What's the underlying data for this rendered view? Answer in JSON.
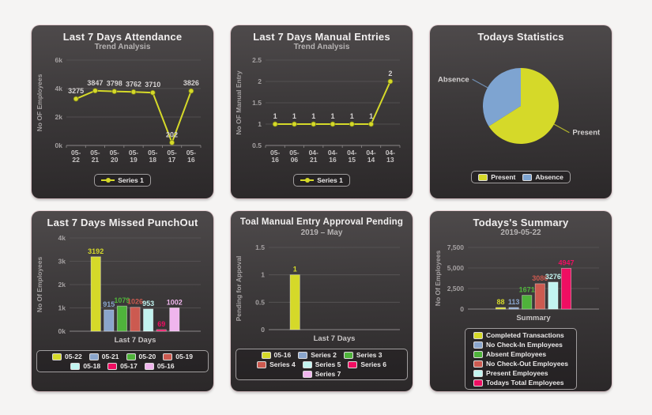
{
  "page": {
    "background": "#f5f4f3"
  },
  "colors": {
    "yellow": "#d5d929",
    "blue": "#8aa5cc",
    "green": "#4fb33b",
    "red": "#cc5a50",
    "cyan": "#c2f4f0",
    "pink": "#ef0e62",
    "violet": "#f0b5ed",
    "pie_blue": "#7ea4d1",
    "grid": "#5a5758",
    "tick_text": "#a5a1a2",
    "axis": "#8b8788",
    "point_label": "#d6d3d3"
  },
  "panels": [
    {
      "title": "Last 7 Days Attendance",
      "subtitle": "Trend Analysis"
    },
    {
      "title": "Last 7 Days Manual Entries",
      "subtitle": "Trend Analysis"
    },
    {
      "title": "Todays Statistics",
      "subtitle": ""
    },
    {
      "title": "Last 7 Days Missed PunchOut",
      "subtitle": ""
    },
    {
      "title": "Toal Manual Entry Approval Pending",
      "subtitle": "2019 – May"
    },
    {
      "title": "Todays's Summary",
      "subtitle": "2019-05-22"
    }
  ],
  "chart_data": [
    {
      "type": "line",
      "title": "Last 7 Days Attendance",
      "subtitle": "Trend Analysis",
      "categories": [
        "05-22",
        "05-21",
        "05-20",
        "05-19",
        "05-18",
        "05-17",
        "05-16"
      ],
      "series": [
        {
          "name": "Series 1",
          "values": [
            3275,
            3847,
            3798,
            3762,
            3710,
            202,
            3826
          ],
          "color": "#d5d929"
        }
      ],
      "ylabel": "No OF Employees",
      "ylim": [
        0,
        6000
      ],
      "yticks": [
        0,
        2000,
        4000,
        6000
      ],
      "ytick_labels": [
        "0k",
        "2k",
        "4k",
        "6k"
      ],
      "legend_position": "bottom",
      "grid": true
    },
    {
      "type": "line",
      "title": "Last 7 Days Manual Entries",
      "subtitle": "Trend Analysis",
      "categories": [
        "05-16",
        "05-06",
        "04-21",
        "04-16",
        "04-15",
        "04-14",
        "04-13"
      ],
      "series": [
        {
          "name": "Series 1",
          "values": [
            1,
            1,
            1,
            1,
            1,
            1,
            2
          ],
          "color": "#d5d929"
        }
      ],
      "ylabel": "No OF Manual Entry",
      "ylim": [
        0.5,
        2.5
      ],
      "yticks": [
        0.5,
        1,
        1.5,
        2,
        2.5
      ],
      "ytick_labels": [
        "0.5",
        "1",
        "1.5",
        "2",
        "2.5"
      ],
      "legend_position": "bottom",
      "grid": true
    },
    {
      "type": "pie",
      "title": "Todays Statistics",
      "slices": [
        {
          "label": "Present",
          "fraction": 0.66,
          "color": "#d5d929"
        },
        {
          "label": "Absence",
          "fraction": 0.34,
          "color": "#7ea4d1"
        }
      ],
      "legend_position": "bottom"
    },
    {
      "type": "bar",
      "title": "Last 7 Days Missed PunchOut",
      "categories": [
        "05-22",
        "05-21",
        "05-20",
        "05-19",
        "05-18",
        "05-17",
        "05-16"
      ],
      "values": [
        3192,
        915,
        1079,
        1026,
        953,
        69,
        1002
      ],
      "colors": [
        "#d5d929",
        "#8aa5cc",
        "#4fb33b",
        "#cc5a50",
        "#c2f4f0",
        "#ef0e62",
        "#f0b5ed"
      ],
      "ylabel": "No Of Employees",
      "xlabel": "Last 7 Days",
      "ylim": [
        0,
        4000
      ],
      "yticks": [
        0,
        1000,
        2000,
        3000,
        4000
      ],
      "ytick_labels": [
        "0k",
        "1k",
        "2k",
        "3k",
        "4k"
      ],
      "legend_position": "bottom",
      "grid": true
    },
    {
      "type": "bar",
      "title": "Toal Manual Entry Approval Pending",
      "subtitle": "2019 – May",
      "categories": [
        "05-16",
        "Series 2",
        "Series 3",
        "Series 4",
        "Series 5",
        "Series 6",
        "Series 7"
      ],
      "values": [
        1,
        null,
        null,
        null,
        null,
        null,
        null
      ],
      "colors": [
        "#d5d929",
        "#8aa5cc",
        "#4fb33b",
        "#cc5a50",
        "#c2f4f0",
        "#ef0e62",
        "#f0b5ed"
      ],
      "ylabel": "Pending for Appoval",
      "xlabel": "Last 7 Days",
      "ylim": [
        0,
        1.5
      ],
      "yticks": [
        0,
        0.5,
        1,
        1.5
      ],
      "ytick_labels": [
        "0",
        "0.5",
        "1",
        "1.5"
      ],
      "legend_position": "bottom",
      "grid": true
    },
    {
      "type": "bar",
      "title": "Todays's Summary",
      "subtitle": "2019-05-22",
      "categories": [
        "Completed Transactions",
        "No Check-In Employees",
        "Absent Employees",
        "No Check-Out Employees",
        "Present Employees",
        "Todays Total Employees"
      ],
      "values": [
        88,
        113,
        1671,
        3086,
        3276,
        4947
      ],
      "colors": [
        "#d5d929",
        "#8aa5cc",
        "#4fb33b",
        "#cc5a50",
        "#c2f4f0",
        "#ef0e62"
      ],
      "ylabel": "No Of Employees",
      "xlabel": "Summary",
      "ylim": [
        0,
        7500
      ],
      "yticks": [
        0,
        2500,
        5000,
        7500
      ],
      "ytick_labels": [
        "0",
        "2,500",
        "5,000",
        "7,500"
      ],
      "legend_position": "bottom",
      "legend_layout": "vertical",
      "grid": true
    }
  ]
}
